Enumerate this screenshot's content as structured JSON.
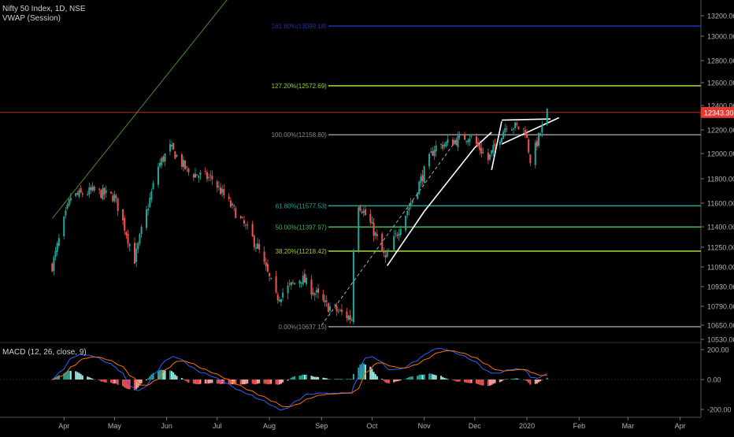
{
  "header": {
    "symbol_line": "Nifty 50 Index, 1D, NSE",
    "indicator_line": "VWAP (Session)"
  },
  "macd_label": "MACD (12, 26, close, 9)",
  "last_price_label": "12343.30",
  "colors": {
    "background": "#000000",
    "up": "#26a69a",
    "down": "#ef5350",
    "up_light": "#9ee6dd",
    "down_light": "#f9a8a5",
    "macd_line": "#2962ff",
    "signal_line": "#ff6d00",
    "fib_blue": "#1f2fa8",
    "fib_yellowgreen": "#9acd32",
    "fib_green": "#4caf50",
    "fib_teal": "#26a69a",
    "fib_gray": "#888888",
    "price_line": "#e53935",
    "trend_green": "#4c8c2b",
    "pattern": "#ffffff",
    "axis_text": "#b0b0b0"
  },
  "chart_data": [
    {
      "type": "candlestick",
      "title": "Nifty 50 Index, 1D, NSE",
      "indicator": "VWAP (Session)",
      "x_tick_labels": [
        "Apr",
        "May",
        "Jun",
        "Jul",
        "Aug",
        "Sep",
        "Oct",
        "Nov",
        "Dec",
        "2020",
        "Feb",
        "Mar",
        "Apr"
      ],
      "y_tick_labels": [
        "13200.00",
        "13000.00",
        "12800.00",
        "12600.00",
        "12400.00",
        "12200.00",
        "12000.00",
        "11800.00",
        "11600.00",
        "11400.00",
        "11250.00",
        "11090.00",
        "10930.00",
        "10790.00",
        "10650.00",
        "10530.00"
      ],
      "last_price": 12343.3,
      "anchors": [
        {
          "date": "2019-03-25",
          "close": 11100
        },
        {
          "date": "2019-04-05",
          "close": 11650
        },
        {
          "date": "2019-04-18",
          "close": 11700
        },
        {
          "date": "2019-05-01",
          "close": 11650
        },
        {
          "date": "2019-05-13",
          "close": 11150
        },
        {
          "date": "2019-05-27",
          "close": 11900
        },
        {
          "date": "2019-06-03",
          "close": 12050
        },
        {
          "date": "2019-06-14",
          "close": 11850
        },
        {
          "date": "2019-06-28",
          "close": 11800
        },
        {
          "date": "2019-07-08",
          "close": 11600
        },
        {
          "date": "2019-07-25",
          "close": 11250
        },
        {
          "date": "2019-08-05",
          "close": 10850
        },
        {
          "date": "2019-08-20",
          "close": 11000
        },
        {
          "date": "2019-09-03",
          "close": 10800
        },
        {
          "date": "2019-09-19",
          "close": 10700
        },
        {
          "date": "2019-09-20",
          "close": 11250
        },
        {
          "date": "2019-09-23",
          "close": 11600
        },
        {
          "date": "2019-10-01",
          "close": 11400
        },
        {
          "date": "2019-10-09",
          "close": 11150
        },
        {
          "date": "2019-10-24",
          "close": 11600
        },
        {
          "date": "2019-11-07",
          "close": 12050
        },
        {
          "date": "2019-11-28",
          "close": 12150
        },
        {
          "date": "2019-12-09",
          "close": 11950
        },
        {
          "date": "2019-12-20",
          "close": 12250
        },
        {
          "date": "2019-12-31",
          "close": 12200
        },
        {
          "date": "2020-01-03",
          "close": 11950
        },
        {
          "date": "2020-01-06",
          "close": 12050
        },
        {
          "date": "2020-01-13",
          "close": 12343.3
        }
      ],
      "fib_levels": [
        {
          "label": "161.80%(13099.18)",
          "value": 13099.18,
          "color": "#1f2fa8"
        },
        {
          "label": "127.20%(12572.69)",
          "value": 12572.69,
          "color": "#9acd32"
        },
        {
          "label": "100.00%(12158.80)",
          "value": 12158.8,
          "color": "#888888"
        },
        {
          "label": "61.80%(11577.53)",
          "value": 11577.53,
          "color": "#26a69a"
        },
        {
          "label": "50.00%(11397.97)",
          "value": 11397.97,
          "color": "#4caf50"
        },
        {
          "label": "38.20%(11218.42)",
          "value": 11218.42,
          "color": "#9acd32"
        },
        {
          "label": "0.00%(10637.15)",
          "value": 10637.15,
          "color": "#888888"
        }
      ],
      "trend_line": [
        {
          "date": "2019-03-25",
          "value": 11470
        },
        {
          "date": "2019-07-09",
          "value": 13400
        }
      ],
      "fib_dashed_line": [
        {
          "date": "2019-09-01",
          "value": 10650
        },
        {
          "date": "2019-11-22",
          "value": 12150
        }
      ],
      "pattern_lines": [
        [
          {
            "date": "2019-10-10",
            "value": 11100
          },
          {
            "date": "2019-11-01",
            "value": 11530
          }
        ],
        [
          {
            "date": "2019-11-01",
            "value": 11530
          },
          {
            "date": "2019-12-01",
            "value": 12050
          }
        ],
        [
          {
            "date": "2019-12-01",
            "value": 12050
          },
          {
            "date": "2019-12-11",
            "value": 12180
          }
        ],
        [
          {
            "date": "2019-12-11",
            "value": 11870
          },
          {
            "date": "2019-12-17",
            "value": 12270
          }
        ],
        [
          {
            "date": "2019-12-17",
            "value": 12280
          },
          {
            "date": "2020-01-15",
            "value": 12290
          }
        ],
        [
          {
            "date": "2019-12-17",
            "value": 12080
          },
          {
            "date": "2020-01-20",
            "value": 12300
          }
        ]
      ],
      "ylim": [
        10530,
        13330
      ]
    },
    {
      "type": "macd",
      "title": "MACD (12, 26, close, 9)",
      "y_tick_labels": [
        "200.00",
        "0.00",
        "-200.00"
      ],
      "ylim": [
        -230,
        230
      ]
    }
  ]
}
